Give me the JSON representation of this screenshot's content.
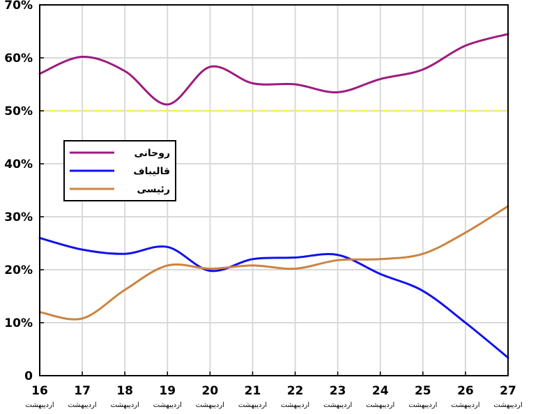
{
  "chart_data": {
    "type": "line",
    "x": [
      16,
      17,
      18,
      19,
      20,
      21,
      22,
      23,
      24,
      25,
      26,
      27
    ],
    "x_tick_labels": [
      "16",
      "17",
      "18",
      "19",
      "20",
      "21",
      "22",
      "23",
      "24",
      "25",
      "26",
      "27"
    ],
    "x_tick_sublabel": "اردیبهشت",
    "y_tick_labels": [
      "0",
      "10%",
      "20%",
      "30%",
      "40%",
      "50%",
      "60%",
      "70%"
    ],
    "y_ticks": [
      0,
      10,
      20,
      30,
      40,
      50,
      60,
      70
    ],
    "xlim": [
      16,
      27
    ],
    "ylim": [
      0,
      70
    ],
    "grid": true,
    "legend_position": "left-middle",
    "reference_line": {
      "y": 50,
      "color": "#ffff00"
    },
    "series": [
      {
        "name": "روحانی",
        "color": "#9e1a7e",
        "values": [
          57,
          60.2,
          57.5,
          51.2,
          58.3,
          55.2,
          55.0,
          53.5,
          56.0,
          57.8,
          62.3,
          64.5
        ]
      },
      {
        "name": "قالیباف",
        "color": "#1010ee",
        "values": [
          26,
          23.8,
          23.0,
          24.3,
          19.8,
          22.0,
          22.3,
          22.8,
          19.2,
          16.0,
          10.0,
          3.4
        ]
      },
      {
        "name": "رئیسی",
        "color": "#cc8340",
        "values": [
          12,
          10.8,
          16.2,
          20.8,
          20.2,
          20.8,
          20.2,
          21.8,
          22.0,
          23.0,
          27.0,
          32.0
        ]
      }
    ]
  }
}
